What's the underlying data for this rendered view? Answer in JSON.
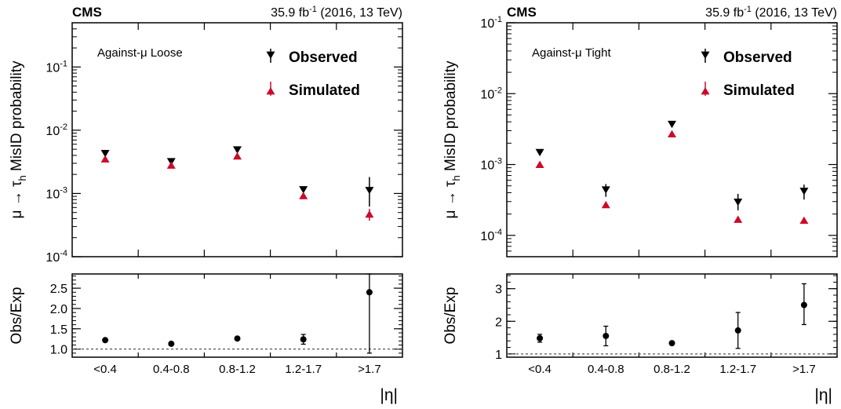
{
  "chart_data": [
    {
      "type": "scatter",
      "header": {
        "experiment": "CMS",
        "lumi_prefix": "35.9 fb",
        "lumi_exp": "-1",
        "lumi_suffix": " (2016, 13 TeV)"
      },
      "annotation": "Against-μ Loose",
      "ylabel": {
        "pre": "μ → τ",
        "sub": "h",
        "post": " MisID probability"
      },
      "ratio_ylabel": "Obs/Exp",
      "xlabel": "|η|",
      "categories": [
        "<0.4",
        "0.4-0.8",
        "0.8-1.2",
        "1.2-1.7",
        ">1.7"
      ],
      "y_scale": "log",
      "ylim": [
        0.0001,
        0.5
      ],
      "y_ticks": [
        {
          "value": 0.0001,
          "base": "10",
          "exp": "-4"
        },
        {
          "value": 0.001,
          "base": "10",
          "exp": "-3"
        },
        {
          "value": 0.01,
          "base": "10",
          "exp": "-2"
        },
        {
          "value": 0.1,
          "base": "10",
          "exp": "-1"
        }
      ],
      "legend": {
        "position": "top-right",
        "entries": [
          "Observed",
          "Simulated"
        ]
      },
      "series": [
        {
          "name": "Observed",
          "marker": "triangle-down",
          "color": "#000000",
          "values": [
            0.0043,
            0.0032,
            0.0049,
            0.00115,
            0.00112
          ],
          "err_lo": [
            0.0003,
            0.0002,
            0.0003,
            0.0001,
            0.0005
          ],
          "err_hi": [
            0.0003,
            0.0002,
            0.0003,
            0.0001,
            0.0007
          ]
        },
        {
          "name": "Simulated",
          "marker": "triangle-up",
          "color": "#cc0a2a",
          "values": [
            0.0035,
            0.0028,
            0.0039,
            0.00092,
            0.00047
          ],
          "err_lo": [
            0.0001,
            0.0001,
            0.0001,
            5e-05,
            0.0001
          ],
          "err_hi": [
            0.0001,
            0.0001,
            0.0001,
            5e-05,
            0.0001
          ]
        }
      ],
      "ratio": {
        "ylim": [
          0.8,
          2.85
        ],
        "ticks": [
          "1.0",
          "1.5",
          "2.0",
          "2.5"
        ],
        "tick_values": [
          1.0,
          1.5,
          2.0,
          2.5
        ],
        "reference_line": 1.0,
        "values": [
          1.22,
          1.13,
          1.26,
          1.24,
          2.4
        ],
        "err_lo": [
          0.03,
          0.03,
          0.03,
          0.12,
          1.5
        ],
        "err_hi": [
          0.03,
          0.03,
          0.03,
          0.12,
          1.6
        ]
      }
    },
    {
      "type": "scatter",
      "header": {
        "experiment": "CMS",
        "lumi_prefix": "35.9 fb",
        "lumi_exp": "-1",
        "lumi_suffix": " (2016, 13 TeV)"
      },
      "annotation": "Against-μ Tight",
      "ylabel": {
        "pre": "μ → τ",
        "sub": "h",
        "post": " MisID probability"
      },
      "ratio_ylabel": "Obs/Exp",
      "xlabel": "|η|",
      "categories": [
        "<0.4",
        "0.4-0.8",
        "0.8-1.2",
        "1.2-1.7",
        ">1.7"
      ],
      "y_scale": "log",
      "ylim": [
        5e-05,
        0.1
      ],
      "y_ticks": [
        {
          "value": 0.0001,
          "base": "10",
          "exp": "-4"
        },
        {
          "value": 0.001,
          "base": "10",
          "exp": "-3"
        },
        {
          "value": 0.01,
          "base": "10",
          "exp": "-2"
        },
        {
          "value": 0.1,
          "base": "10",
          "exp": "-1"
        }
      ],
      "legend": {
        "position": "top-right",
        "entries": [
          "Observed",
          "Simulated"
        ]
      },
      "series": [
        {
          "name": "Observed",
          "marker": "triangle-down",
          "color": "#000000",
          "values": [
            0.00148,
            0.00044,
            0.0037,
            0.000295,
            0.00042
          ],
          "err_lo": [
            0.0001,
            9e-05,
            0.0002,
            7e-05,
            0.0001
          ],
          "err_hi": [
            0.0001,
            9e-05,
            0.0002,
            9e-05,
            0.0001
          ]
        },
        {
          "name": "Simulated",
          "marker": "triangle-up",
          "color": "#cc0a2a",
          "values": [
            0.001,
            0.00027,
            0.0027,
            0.000168,
            0.000163
          ],
          "err_lo": [
            4e-05,
            1e-05,
            0.0001,
            1e-05,
            1e-05
          ],
          "err_hi": [
            4e-05,
            1e-05,
            0.0001,
            1e-05,
            1e-05
          ]
        }
      ],
      "ratio": {
        "ylim": [
          0.9,
          3.45
        ],
        "ticks": [
          "1",
          "2",
          "3"
        ],
        "tick_values": [
          1,
          2,
          3
        ],
        "reference_line": 1.0,
        "values": [
          1.48,
          1.55,
          1.33,
          1.72,
          2.5
        ],
        "err_lo": [
          0.12,
          0.3,
          0.04,
          0.55,
          0.6
        ],
        "err_hi": [
          0.12,
          0.3,
          0.04,
          0.55,
          0.65
        ]
      }
    }
  ]
}
